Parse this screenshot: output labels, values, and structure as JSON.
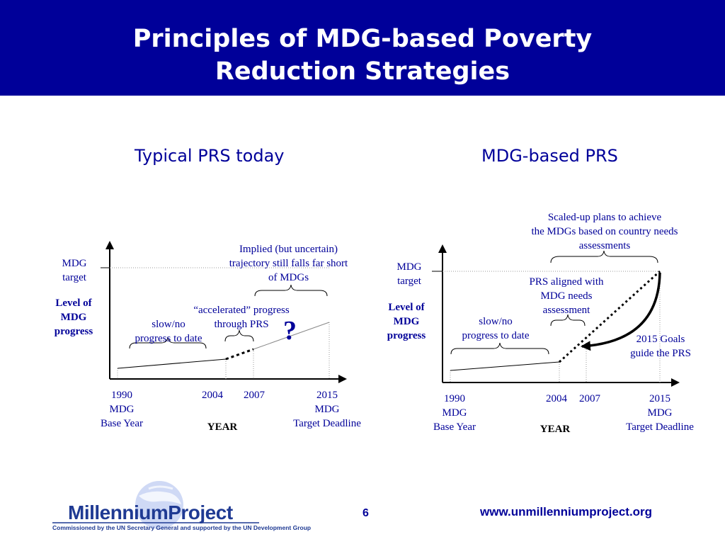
{
  "slide": {
    "title_line1": "Principles of MDG-based Poverty",
    "title_line2": "Reduction Strategies",
    "page_number": "6",
    "url": "www.unmillenniumproject.org",
    "colors": {
      "header": "#000099",
      "text_blue": "#000099"
    }
  },
  "left_panel": {
    "subtitle": "Typical PRS today",
    "mdg_target": [
      "MDG",
      "target"
    ],
    "y_axis_label": [
      "Level of",
      "MDG",
      "progress"
    ],
    "slow_progress": [
      "slow/no",
      "progress to date"
    ],
    "accelerated": [
      "“accelerated” progress",
      "through PRS"
    ],
    "implied": [
      "Implied (but uncertain)",
      "trajectory still falls far short",
      "of MDGs"
    ],
    "question_mark": "?",
    "x_ticks": {
      "t1990": [
        "1990",
        "MDG",
        "Base Year"
      ],
      "t2004": "2004",
      "t2007": "2007",
      "t2015": [
        "2015",
        "MDG",
        "Target Deadline"
      ]
    },
    "x_axis_label": "YEAR"
  },
  "right_panel": {
    "subtitle": "MDG-based PRS",
    "mdg_target": [
      "MDG",
      "target"
    ],
    "y_axis_label": [
      "Level of",
      "MDG",
      "progress"
    ],
    "slow_progress": [
      "slow/no",
      "progress  to date"
    ],
    "aligned": [
      "PRS aligned with",
      "MDG needs",
      "assessment"
    ],
    "scaled_up": [
      "Scaled-up plans to achieve",
      "the MDGs based on country needs",
      "assessments"
    ],
    "goals_guide": [
      "2015 Goals",
      "guide the PRS"
    ],
    "x_ticks": {
      "t1990": [
        "1990",
        "MDG",
        "Base Year"
      ],
      "t2004": "2004",
      "t2007": "2007",
      "t2015": [
        "2015",
        "MDG",
        "Target Deadline"
      ]
    },
    "x_axis_label": "YEAR"
  },
  "logo": {
    "name": "MillenniumProject",
    "tagline": "Commissioned by the UN Secretary General and supported by the UN Development Group"
  }
}
